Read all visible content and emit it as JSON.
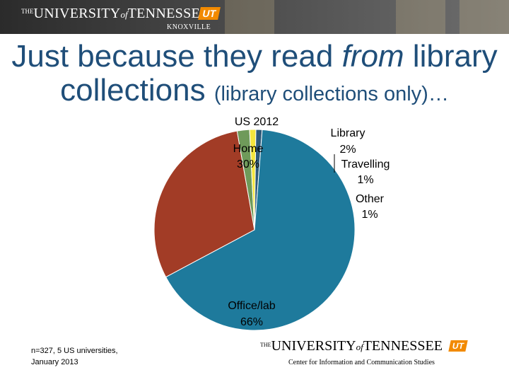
{
  "header": {
    "logo_the": "THE",
    "logo_university": "UNIVERSITY",
    "logo_of": "of",
    "logo_tennessee": "TENNESSEE",
    "logo_mark": "UT",
    "logo_sub": "KNOXVILLE"
  },
  "title": {
    "part1": "Just because they read ",
    "part2_italic": "from",
    "part3": " library",
    "line2_main": "collections ",
    "line2_small": "(library collections only)…"
  },
  "chart_data": {
    "type": "pie",
    "title": "US 2012",
    "slices": [
      {
        "name": "Home",
        "value": 30,
        "label": "30%",
        "color": "#a23c26"
      },
      {
        "name": "Library",
        "value": 2,
        "label": "2%",
        "color": "#6f9a5a"
      },
      {
        "name": "Travelling",
        "value": 1,
        "label": "1%",
        "color": "#f5e63d"
      },
      {
        "name": "Other",
        "value": 1,
        "label": "1%",
        "color": "#2f5a79"
      },
      {
        "name": "Office/lab",
        "value": 66,
        "label": "66%",
        "color": "#1e7a9c"
      }
    ]
  },
  "footer": {
    "note_line1": "n=327, 5 US universities,",
    "note_line2": "January 2013",
    "logo_the": "THE",
    "logo_university": "UNIVERSITY",
    "logo_of": "of",
    "logo_tennessee": "TENNESSEE",
    "logo_mark": "UT",
    "center_name": "Center for Information and Communication Studies"
  }
}
